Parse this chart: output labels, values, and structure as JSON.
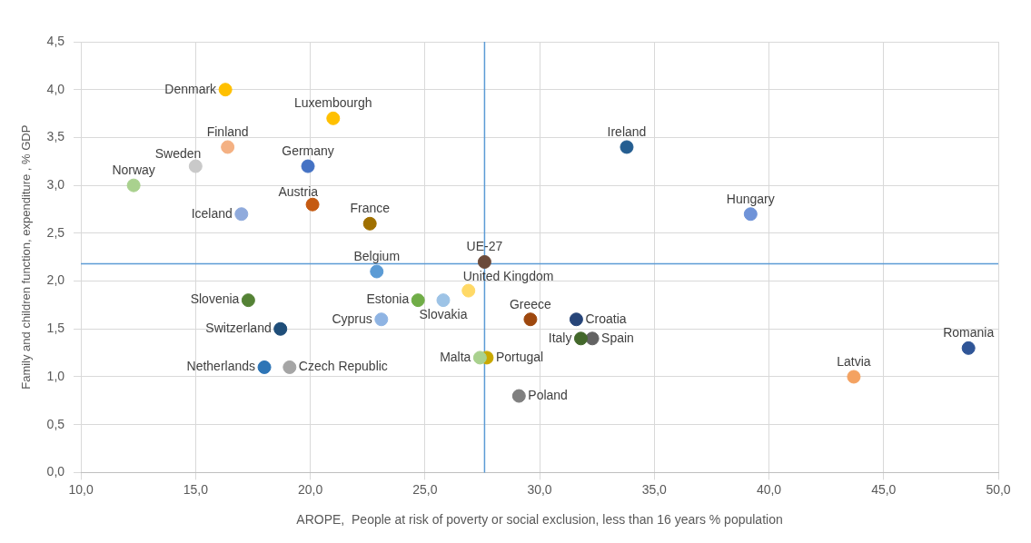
{
  "chart_data": {
    "type": "scatter",
    "xlabel": "AROPE,  People at risk of poverty or social exclusion, less than 16 years % population",
    "ylabel": "Family and children function, expenditure , % GDP",
    "xlim": [
      10,
      50
    ],
    "xticks": [
      {
        "value": 10,
        "label": "10,0"
      },
      {
        "value": 15,
        "label": "15,0"
      },
      {
        "value": 20,
        "label": "20,0"
      },
      {
        "value": 25,
        "label": "25,0"
      },
      {
        "value": 30,
        "label": "30,0"
      },
      {
        "value": 35,
        "label": "35,0"
      },
      {
        "value": 40,
        "label": "40,0"
      },
      {
        "value": 45,
        "label": "45,0"
      },
      {
        "value": 50,
        "label": "50,0"
      }
    ],
    "ylim": [
      0,
      4.5
    ],
    "yticks": [
      {
        "value": 0,
        "label": "0,0"
      },
      {
        "value": 0.5,
        "label": "0,5"
      },
      {
        "value": 1,
        "label": "1,0"
      },
      {
        "value": 1.5,
        "label": "1,5"
      },
      {
        "value": 2,
        "label": "2,0"
      },
      {
        "value": 2.5,
        "label": "2,5"
      },
      {
        "value": 3,
        "label": "3,0"
      },
      {
        "value": 3.5,
        "label": "3,5"
      },
      {
        "value": 4,
        "label": "4,0"
      },
      {
        "value": 4.5,
        "label": "4,5"
      }
    ],
    "grid": true,
    "legend": false,
    "marker": "circle",
    "ref_lines": [
      {
        "axis": "x",
        "value": 27.6,
        "color": "#5b9bd5"
      },
      {
        "axis": "y",
        "value": 2.18,
        "color": "#5b9bd5"
      }
    ],
    "series": [
      {
        "name": "Denmark",
        "color": "#ffc000",
        "x": [
          16.3
        ],
        "values": [
          4.0
        ]
      },
      {
        "name": "Luxembourgh",
        "color": "#ffc000",
        "x": [
          21.0
        ],
        "values": [
          3.7
        ]
      },
      {
        "name": "Finland",
        "color": "#f4b183",
        "x": [
          16.4
        ],
        "values": [
          3.4
        ]
      },
      {
        "name": "Sweden",
        "color": "#c9c9c9",
        "x": [
          15.0
        ],
        "values": [
          3.2
        ]
      },
      {
        "name": "Germany",
        "color": "#4472c4",
        "x": [
          19.9
        ],
        "values": [
          3.2
        ]
      },
      {
        "name": "Norway",
        "color": "#a9d18e",
        "x": [
          12.3
        ],
        "values": [
          3.0
        ]
      },
      {
        "name": "Austria",
        "color": "#c55a11",
        "x": [
          20.1
        ],
        "values": [
          2.8
        ]
      },
      {
        "name": "Iceland",
        "color": "#8faadc",
        "x": [
          17.0
        ],
        "values": [
          2.7
        ]
      },
      {
        "name": "France",
        "color": "#a07000",
        "x": [
          22.6
        ],
        "values": [
          2.6
        ]
      },
      {
        "name": "UE-27",
        "color": "#6b4a3a",
        "x": [
          27.6
        ],
        "values": [
          2.2
        ]
      },
      {
        "name": "Belgium",
        "color": "#5b9bd5",
        "x": [
          22.9
        ],
        "values": [
          2.1
        ]
      },
      {
        "name": "Slovenia",
        "color": "#548235",
        "x": [
          17.3
        ],
        "values": [
          1.8
        ]
      },
      {
        "name": "Estonia",
        "color": "#70ad47",
        "x": [
          24.7
        ],
        "values": [
          1.8
        ]
      },
      {
        "name": "Slovakia",
        "color": "#9dc3e6",
        "x": [
          25.8
        ],
        "values": [
          1.8
        ]
      },
      {
        "name": "United Kingdom",
        "color": "#ffd966",
        "x": [
          26.9
        ],
        "values": [
          1.9
        ]
      },
      {
        "name": "Cyprus",
        "color": "#8fb4e3",
        "x": [
          23.1
        ],
        "values": [
          1.6
        ]
      },
      {
        "name": "Greece",
        "color": "#9e480e",
        "x": [
          29.6
        ],
        "values": [
          1.6
        ]
      },
      {
        "name": "Croatia",
        "color": "#264478",
        "x": [
          31.6
        ],
        "values": [
          1.6
        ]
      },
      {
        "name": "Switzerland",
        "color": "#1f4e79",
        "x": [
          18.7
        ],
        "values": [
          1.5
        ]
      },
      {
        "name": "Italy",
        "color": "#43682b",
        "x": [
          31.8
        ],
        "values": [
          1.4
        ]
      },
      {
        "name": "Spain",
        "color": "#636363",
        "x": [
          32.3
        ],
        "values": [
          1.4
        ]
      },
      {
        "name": "Romania",
        "color": "#2f5597",
        "x": [
          48.7
        ],
        "values": [
          1.3
        ]
      },
      {
        "name": "Malta",
        "color": "#a9d18e",
        "x": [
          27.4
        ],
        "values": [
          1.2
        ]
      },
      {
        "name": "Portugal",
        "color": "#c9a800",
        "x": [
          27.7
        ],
        "values": [
          1.2
        ]
      },
      {
        "name": "Netherlands",
        "color": "#2e75b6",
        "x": [
          18.0
        ],
        "values": [
          1.1
        ]
      },
      {
        "name": "Czech Republic",
        "color": "#a5a5a5",
        "x": [
          19.1
        ],
        "values": [
          1.1
        ]
      },
      {
        "name": "Poland",
        "color": "#7f7f7f",
        "x": [
          29.1
        ],
        "values": [
          0.8
        ]
      },
      {
        "name": "Latvia",
        "color": "#f4a261",
        "x": [
          43.7
        ],
        "values": [
          1.0
        ]
      },
      {
        "name": "Ireland",
        "color": "#255e91",
        "x": [
          33.8
        ],
        "values": [
          3.4
        ]
      },
      {
        "name": "Hungary",
        "color": "#6f93d8",
        "x": [
          39.2
        ],
        "values": [
          2.7
        ]
      }
    ]
  }
}
